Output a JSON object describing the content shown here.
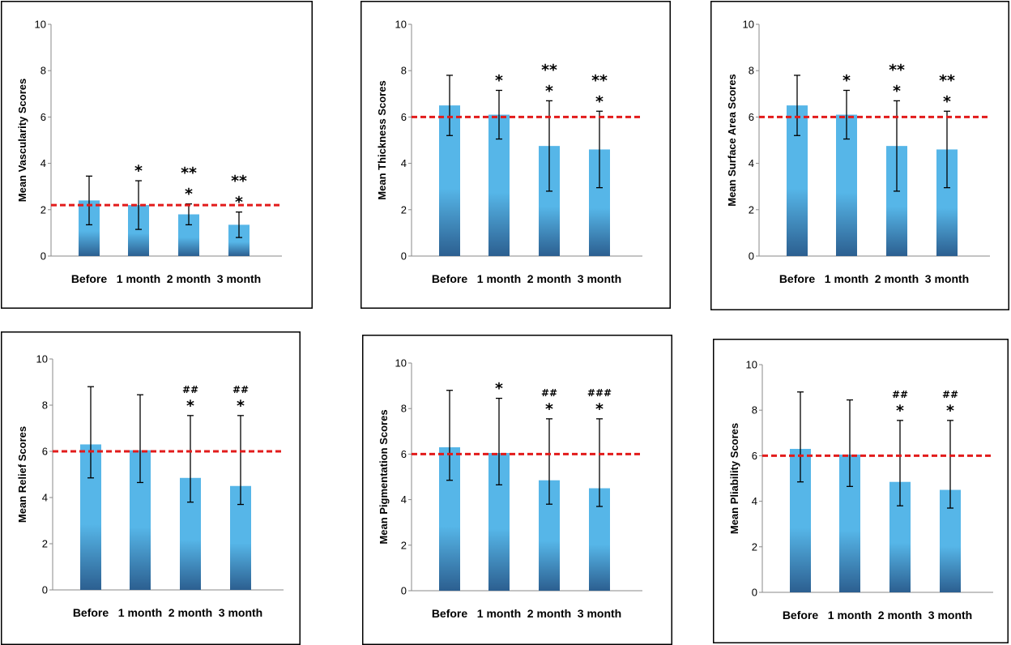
{
  "chart_data": [
    {
      "type": "bar",
      "categories": [
        "Before",
        "1 month",
        "2 month",
        "3 month"
      ],
      "values": [
        2.4,
        2.2,
        1.8,
        1.35
      ],
      "errors": [
        1.05,
        1.05,
        0.45,
        0.55
      ],
      "reference_line": 2.2,
      "annotations": [
        [
          "",
          ""
        ],
        [
          "*",
          ""
        ],
        [
          "**",
          "*"
        ],
        [
          "**",
          "*"
        ]
      ],
      "ylabel": "Mean Vascularity Scores",
      "ylim": [
        0,
        10
      ],
      "yticks": [
        0,
        2,
        4,
        6,
        8,
        10
      ]
    },
    {
      "type": "bar",
      "categories": [
        "Before",
        "1 month",
        "2 month",
        "3 month"
      ],
      "values": [
        6.5,
        6.1,
        4.75,
        4.6
      ],
      "errors": [
        1.3,
        1.05,
        1.95,
        1.65
      ],
      "reference_line": 6.0,
      "annotations": [
        [
          "",
          ""
        ],
        [
          "*",
          ""
        ],
        [
          "**",
          "*"
        ],
        [
          "**",
          "*"
        ]
      ],
      "ylabel": "Mean Thickness Scores",
      "ylim": [
        0,
        10
      ],
      "yticks": [
        0,
        2,
        4,
        6,
        8,
        10
      ]
    },
    {
      "type": "bar",
      "categories": [
        "Before",
        "1 month",
        "2 month",
        "3 month"
      ],
      "values": [
        6.5,
        6.1,
        4.75,
        4.6
      ],
      "errors": [
        1.3,
        1.05,
        1.95,
        1.65
      ],
      "reference_line": 6.0,
      "annotations": [
        [
          "",
          ""
        ],
        [
          "*",
          ""
        ],
        [
          "**",
          "*"
        ],
        [
          "**",
          "*"
        ]
      ],
      "ylabel": "Mean Surface Area Scores",
      "ylim": [
        0,
        10
      ],
      "yticks": [
        0,
        2,
        4,
        6,
        8,
        10
      ]
    },
    {
      "type": "bar",
      "categories": [
        "Before",
        "1 month",
        "2 month",
        "3 month"
      ],
      "values": [
        6.3,
        6.05,
        4.85,
        4.5
      ],
      "errors": [
        2.5,
        2.4,
        2.7,
        3.05
      ],
      "errors_low": [
        1.45,
        1.4,
        1.05,
        0.8
      ],
      "reference_line": 6.0,
      "annotations": [
        [
          "",
          ""
        ],
        [
          "",
          ""
        ],
        [
          "##",
          "*"
        ],
        [
          "##",
          "*"
        ]
      ],
      "ylabel": "Mean Relief Scores",
      "ylim": [
        0,
        10
      ],
      "yticks": [
        0,
        2,
        4,
        6,
        8,
        10
      ]
    },
    {
      "type": "bar",
      "categories": [
        "Before",
        "1 month",
        "2 month",
        "3 month"
      ],
      "values": [
        6.3,
        6.05,
        4.85,
        4.5
      ],
      "errors": [
        2.5,
        2.4,
        2.7,
        3.05
      ],
      "errors_low": [
        1.45,
        1.4,
        1.05,
        0.8
      ],
      "reference_line": 6.0,
      "annotations": [
        [
          "",
          ""
        ],
        [
          "*",
          ""
        ],
        [
          "##",
          "*"
        ],
        [
          "###",
          "*"
        ]
      ],
      "ylabel": "Mean Pigmentation Scores",
      "ylim": [
        0,
        10
      ],
      "yticks": [
        0,
        2,
        4,
        6,
        8,
        10
      ]
    },
    {
      "type": "bar",
      "categories": [
        "Before",
        "1 month",
        "2 month",
        "3 month"
      ],
      "values": [
        6.3,
        6.05,
        4.85,
        4.5
      ],
      "errors": [
        2.5,
        2.4,
        2.7,
        3.05
      ],
      "errors_low": [
        1.45,
        1.4,
        1.05,
        0.8
      ],
      "reference_line": 6.0,
      "annotations": [
        [
          "",
          ""
        ],
        [
          "",
          ""
        ],
        [
          "##",
          "*"
        ],
        [
          "##",
          "*"
        ]
      ],
      "ylabel": "Mean Pliability Scores",
      "ylim": [
        0,
        10
      ],
      "yticks": [
        0,
        2,
        4,
        6,
        8,
        10
      ]
    }
  ],
  "colors": {
    "bar_top": "#56b6e8",
    "bar_bottom": "#2c5f90",
    "reference_line": "#e21b1b",
    "error_bar": "#000000",
    "frame": "#000000"
  }
}
